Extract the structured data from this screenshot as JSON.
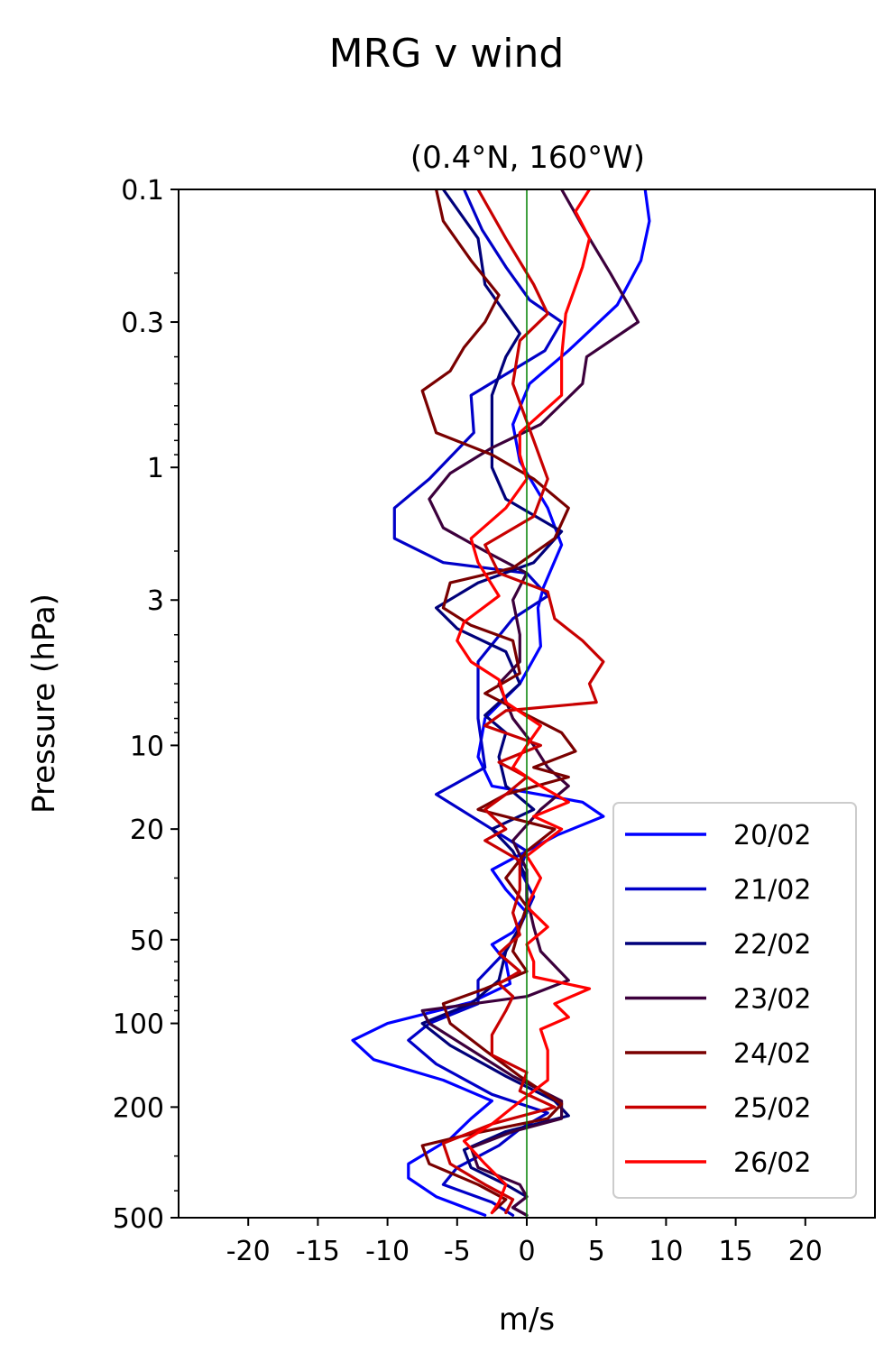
{
  "chart_data": {
    "type": "line",
    "title": "MRG v wind",
    "subtitle": "(0.4°N, 160°W)",
    "xlabel": "m/s",
    "ylabel": "Pressure (hPa)",
    "xlim": [
      -25,
      25
    ],
    "ylim": [
      0.1,
      500
    ],
    "y_scale": "log",
    "y_inverted": true,
    "x_ticks": [
      -20,
      -15,
      -10,
      -5,
      0,
      5,
      10,
      15,
      20
    ],
    "y_ticks": [
      0.1,
      0.3,
      1,
      3,
      10,
      20,
      50,
      100,
      200,
      500
    ],
    "y_tick_labels": [
      "0.1",
      "0.3",
      "1",
      "3",
      "10",
      "20",
      "50",
      "100",
      "200",
      "500"
    ],
    "zero_line_color": "#008000",
    "grid": false,
    "legend_position": "lower-right",
    "series": [
      {
        "name": "20/02",
        "color": "#0000ff",
        "points": [
          [
            8.5,
            0.1
          ],
          [
            8.8,
            0.13
          ],
          [
            8.2,
            0.18
          ],
          [
            6.5,
            0.26
          ],
          [
            3,
            0.38
          ],
          [
            0.2,
            0.5
          ],
          [
            -1,
            0.7
          ],
          [
            -0.5,
            0.95
          ],
          [
            1.5,
            1.4
          ],
          [
            2.5,
            1.9
          ],
          [
            1.2,
            2.7
          ],
          [
            0.8,
            3.2
          ],
          [
            1,
            4.4
          ],
          [
            -0.5,
            6
          ],
          [
            -3,
            8
          ],
          [
            -3.5,
            11
          ],
          [
            -2.5,
            14
          ],
          [
            4,
            16
          ],
          [
            5.5,
            18
          ],
          [
            2.2,
            21
          ],
          [
            0,
            24
          ],
          [
            -2.5,
            28
          ],
          [
            -1.5,
            33
          ],
          [
            0,
            40
          ],
          [
            -1,
            47
          ],
          [
            -2.5,
            52
          ],
          [
            -1.5,
            60
          ],
          [
            -1.2,
            72
          ],
          [
            -4,
            84
          ],
          [
            -10,
            100
          ],
          [
            -12.5,
            115
          ],
          [
            -11,
            135
          ],
          [
            -6,
            160
          ],
          [
            -2.5,
            190
          ],
          [
            -4,
            220
          ],
          [
            -5.5,
            260
          ],
          [
            -8.5,
            320
          ],
          [
            -8.5,
            360
          ],
          [
            -6.5,
            420
          ],
          [
            -3,
            490
          ]
        ]
      },
      {
        "name": "21/02",
        "color": "#0000c8",
        "points": [
          [
            -4.5,
            0.1
          ],
          [
            -3.2,
            0.14
          ],
          [
            -1.5,
            0.19
          ],
          [
            0.2,
            0.25
          ],
          [
            2.5,
            0.3
          ],
          [
            1.3,
            0.38
          ],
          [
            -4,
            0.55
          ],
          [
            -3.8,
            0.75
          ],
          [
            -7,
            1.1
          ],
          [
            -9.5,
            1.4
          ],
          [
            -9.5,
            1.8
          ],
          [
            -6,
            2.2
          ],
          [
            0,
            2.4
          ],
          [
            1.5,
            2.9
          ],
          [
            -1,
            3.5
          ],
          [
            -3.5,
            5
          ],
          [
            -3.5,
            8
          ],
          [
            -3,
            12
          ],
          [
            -6.5,
            15
          ],
          [
            -2.5,
            20
          ],
          [
            0,
            24
          ],
          [
            -0.5,
            28
          ],
          [
            0.5,
            35
          ],
          [
            -0.5,
            45
          ],
          [
            -1.5,
            55
          ],
          [
            -3.5,
            70
          ],
          [
            -3.5,
            85
          ],
          [
            -7,
            100
          ],
          [
            -8.5,
            115
          ],
          [
            -6.5,
            140
          ],
          [
            -2.5,
            180
          ],
          [
            1.5,
            210
          ],
          [
            -0.5,
            240
          ],
          [
            -2,
            275
          ],
          [
            -5,
            330
          ],
          [
            -6,
            380
          ],
          [
            -2.5,
            440
          ],
          [
            -1,
            490
          ]
        ]
      },
      {
        "name": "22/02",
        "color": "#00007a",
        "points": [
          [
            -6,
            0.1
          ],
          [
            -3.5,
            0.15
          ],
          [
            -3,
            0.22
          ],
          [
            -0.5,
            0.33
          ],
          [
            -1.5,
            0.4
          ],
          [
            -2.5,
            0.55
          ],
          [
            -2.5,
            0.75
          ],
          [
            -2.5,
            1.0
          ],
          [
            -1.5,
            1.3
          ],
          [
            2.5,
            1.7
          ],
          [
            0.5,
            2.2
          ],
          [
            -3.5,
            2.6
          ],
          [
            -6.5,
            3.2
          ],
          [
            -5,
            3.8
          ],
          [
            -1.5,
            4.6
          ],
          [
            -0.5,
            6
          ],
          [
            -3,
            7.8
          ],
          [
            -1.5,
            9
          ],
          [
            -2,
            11
          ],
          [
            -1.5,
            14
          ],
          [
            0.5,
            17
          ],
          [
            -2.5,
            20
          ],
          [
            -1,
            24
          ],
          [
            0,
            30
          ],
          [
            0,
            38
          ],
          [
            -0.5,
            45
          ],
          [
            -1.5,
            55
          ],
          [
            -2,
            70
          ],
          [
            -4,
            85
          ],
          [
            -7.5,
            100
          ],
          [
            -5.5,
            120
          ],
          [
            -1.5,
            155
          ],
          [
            2,
            190
          ],
          [
            3,
            215
          ],
          [
            -1.5,
            245
          ],
          [
            -4.5,
            285
          ],
          [
            -4,
            330
          ],
          [
            -1.5,
            380
          ],
          [
            0,
            420
          ],
          [
            -1,
            460
          ],
          [
            0,
            490
          ]
        ]
      },
      {
        "name": "23/02",
        "color": "#3c003c",
        "points": [
          [
            2.5,
            0.1
          ],
          [
            4.5,
            0.15
          ],
          [
            6,
            0.2
          ],
          [
            8,
            0.3
          ],
          [
            4.3,
            0.4
          ],
          [
            4,
            0.5
          ],
          [
            1,
            0.7
          ],
          [
            -2.5,
            0.85
          ],
          [
            -5.5,
            1.05
          ],
          [
            -7,
            1.3
          ],
          [
            -6,
            1.65
          ],
          [
            -3,
            2
          ],
          [
            0,
            2.4
          ],
          [
            -1,
            3
          ],
          [
            -0.5,
            4
          ],
          [
            -0.5,
            5
          ],
          [
            -2,
            6
          ],
          [
            -1,
            8
          ],
          [
            0.5,
            10
          ],
          [
            1.5,
            12
          ],
          [
            3,
            14
          ],
          [
            1,
            17
          ],
          [
            -1,
            22
          ],
          [
            0,
            28
          ],
          [
            0,
            35
          ],
          [
            0.5,
            45
          ],
          [
            1,
            55
          ],
          [
            3,
            70
          ],
          [
            0,
            80
          ],
          [
            -7.5,
            90
          ],
          [
            -7,
            100
          ],
          [
            -4.5,
            120
          ],
          [
            -1,
            155
          ],
          [
            2.5,
            190
          ],
          [
            2.5,
            220
          ],
          [
            -1,
            245
          ],
          [
            -4,
            280
          ],
          [
            -3.5,
            330
          ],
          [
            -0.5,
            380
          ],
          [
            0,
            420
          ],
          [
            -1,
            460
          ],
          [
            0,
            490
          ]
        ]
      },
      {
        "name": "24/02",
        "color": "#7a0000",
        "points": [
          [
            -6.5,
            0.1
          ],
          [
            -6,
            0.13
          ],
          [
            -4,
            0.18
          ],
          [
            -2,
            0.24
          ],
          [
            -3,
            0.3
          ],
          [
            -4.5,
            0.37
          ],
          [
            -5.5,
            0.45
          ],
          [
            -7.5,
            0.53
          ],
          [
            -7,
            0.63
          ],
          [
            -6.5,
            0.75
          ],
          [
            -2.5,
            0.9
          ],
          [
            0.5,
            1.1
          ],
          [
            3,
            1.4
          ],
          [
            2,
            1.8
          ],
          [
            -1,
            2.3
          ],
          [
            -5.5,
            2.6
          ],
          [
            -6,
            3.2
          ],
          [
            -4,
            3.7
          ],
          [
            -1,
            4.2
          ],
          [
            -0.5,
            5.5
          ],
          [
            -3,
            6.5
          ],
          [
            0.5,
            8
          ],
          [
            2.5,
            9
          ],
          [
            3.5,
            10.5
          ],
          [
            0.5,
            12
          ],
          [
            3,
            13
          ],
          [
            -1.5,
            15
          ],
          [
            -3.5,
            17
          ],
          [
            2,
            20
          ],
          [
            0,
            24
          ],
          [
            -1.5,
            30
          ],
          [
            0,
            38
          ],
          [
            -0.5,
            45
          ],
          [
            -1,
            55
          ],
          [
            0,
            65
          ],
          [
            -3,
            75
          ],
          [
            -6,
            85
          ],
          [
            -5.5,
            100
          ],
          [
            -3,
            125
          ],
          [
            -0.5,
            155
          ],
          [
            2.5,
            195
          ],
          [
            1.5,
            220
          ],
          [
            -4,
            250
          ],
          [
            -7.5,
            275
          ],
          [
            -7,
            320
          ],
          [
            -3.5,
            380
          ],
          [
            -1.5,
            430
          ],
          [
            -2.5,
            480
          ]
        ]
      },
      {
        "name": "25/02",
        "color": "#c80000",
        "points": [
          [
            -3.5,
            0.1
          ],
          [
            -1.5,
            0.15
          ],
          [
            0.5,
            0.22
          ],
          [
            1.5,
            0.28
          ],
          [
            -0.5,
            0.35
          ],
          [
            -1,
            0.5
          ],
          [
            0.5,
            0.8
          ],
          [
            1.5,
            1.1
          ],
          [
            0.5,
            1.5
          ],
          [
            -3,
            1.9
          ],
          [
            -2,
            2.4
          ],
          [
            1.5,
            2.8
          ],
          [
            2,
            3.5
          ],
          [
            4,
            4.2
          ],
          [
            5.5,
            5
          ],
          [
            4.5,
            6
          ],
          [
            5,
            7
          ],
          [
            -1.5,
            7.5
          ],
          [
            -3,
            8.5
          ],
          [
            1,
            10
          ],
          [
            -2,
            11.5
          ],
          [
            0,
            13
          ],
          [
            -1.5,
            15
          ],
          [
            -3,
            17
          ],
          [
            -1.5,
            20
          ],
          [
            -3,
            22
          ],
          [
            -0.5,
            26
          ],
          [
            -0.5,
            33
          ],
          [
            -1,
            40
          ],
          [
            -0.5,
            48
          ],
          [
            -2,
            56
          ],
          [
            -0.5,
            65
          ],
          [
            -2,
            72
          ],
          [
            -1,
            80
          ],
          [
            -1.5,
            90
          ],
          [
            -2.5,
            110
          ],
          [
            -2.5,
            130
          ],
          [
            0,
            150
          ],
          [
            -0.5,
            175
          ],
          [
            2,
            200
          ],
          [
            -2.5,
            230
          ],
          [
            -6,
            270
          ],
          [
            -5.5,
            320
          ],
          [
            -3,
            380
          ],
          [
            -1,
            430
          ],
          [
            -1.5,
            480
          ]
        ]
      },
      {
        "name": "26/02",
        "color": "#ff0000",
        "points": [
          [
            4.5,
            0.1
          ],
          [
            3.5,
            0.12
          ],
          [
            4.5,
            0.15
          ],
          [
            4,
            0.19
          ],
          [
            2.8,
            0.28
          ],
          [
            2.5,
            0.4
          ],
          [
            2.5,
            0.55
          ],
          [
            -0.5,
            0.75
          ],
          [
            -0.5,
            0.9
          ],
          [
            0,
            1.1
          ],
          [
            -1.5,
            1.4
          ],
          [
            -4,
            1.8
          ],
          [
            -3.5,
            2.2
          ],
          [
            -2,
            2.9
          ],
          [
            -4.5,
            3.6
          ],
          [
            -5,
            4.2
          ],
          [
            -4,
            5
          ],
          [
            -2,
            5.8
          ],
          [
            -1.5,
            7
          ],
          [
            1,
            8.5
          ],
          [
            0,
            10
          ],
          [
            -1,
            12
          ],
          [
            1,
            14
          ],
          [
            3,
            16
          ],
          [
            0.5,
            18
          ],
          [
            2.5,
            20
          ],
          [
            0,
            25
          ],
          [
            1,
            30
          ],
          [
            0,
            38
          ],
          [
            1.5,
            45
          ],
          [
            0,
            52
          ],
          [
            0.5,
            60
          ],
          [
            0.5,
            68
          ],
          [
            4.5,
            75
          ],
          [
            2,
            85
          ],
          [
            3,
            95
          ],
          [
            1,
            105
          ],
          [
            1.5,
            125
          ],
          [
            1.5,
            160
          ],
          [
            -1,
            200
          ],
          [
            -2.5,
            230
          ],
          [
            -4.5,
            265
          ],
          [
            -3,
            320
          ],
          [
            -1.5,
            380
          ],
          [
            -2,
            440
          ],
          [
            -2.5,
            480
          ]
        ]
      }
    ]
  }
}
